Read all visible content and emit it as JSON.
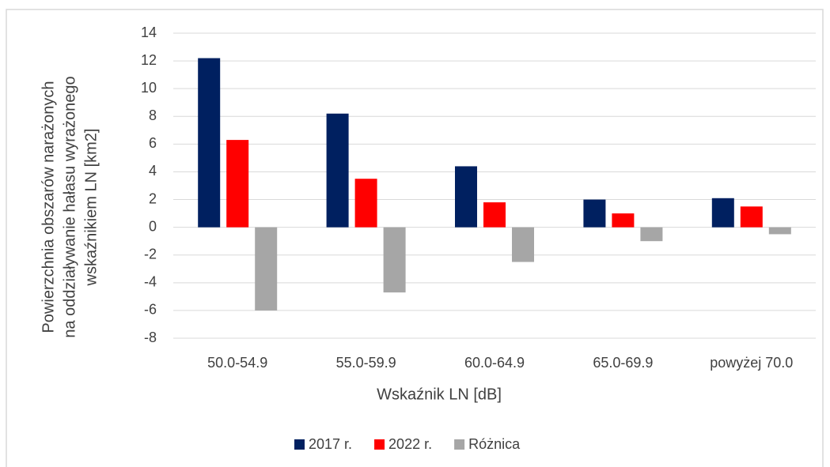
{
  "chart_data": {
    "type": "bar",
    "y_label": [
      "Powierzchnia obszarów narażonych",
      "na oddziaływanie hałasu wyrażonego",
      "wskaźnikiem LN [km2]"
    ],
    "x_label": "Wskaźnik LN [dB]",
    "categories": [
      "50.0-54.9",
      "55.0-59.9",
      "60.0-64.9",
      "65.0-69.9",
      "powyżej 70.0"
    ],
    "series": [
      {
        "name": "2017 r.",
        "color": "#002060",
        "values": [
          12.2,
          8.2,
          4.4,
          2.0,
          2.1
        ]
      },
      {
        "name": "2022 r.",
        "color": "#ff0000",
        "values": [
          6.3,
          3.5,
          1.8,
          1.0,
          1.5
        ]
      },
      {
        "name": "Różnica",
        "color": "#a6a6a6",
        "values": [
          -6.0,
          -4.7,
          -2.5,
          -1.0,
          -0.5
        ]
      }
    ],
    "ylim": [
      -8,
      14
    ],
    "yticks": [
      -8,
      -6,
      -4,
      -2,
      0,
      2,
      4,
      6,
      8,
      10,
      12,
      14
    ],
    "grid": true,
    "legend": "bottom"
  }
}
